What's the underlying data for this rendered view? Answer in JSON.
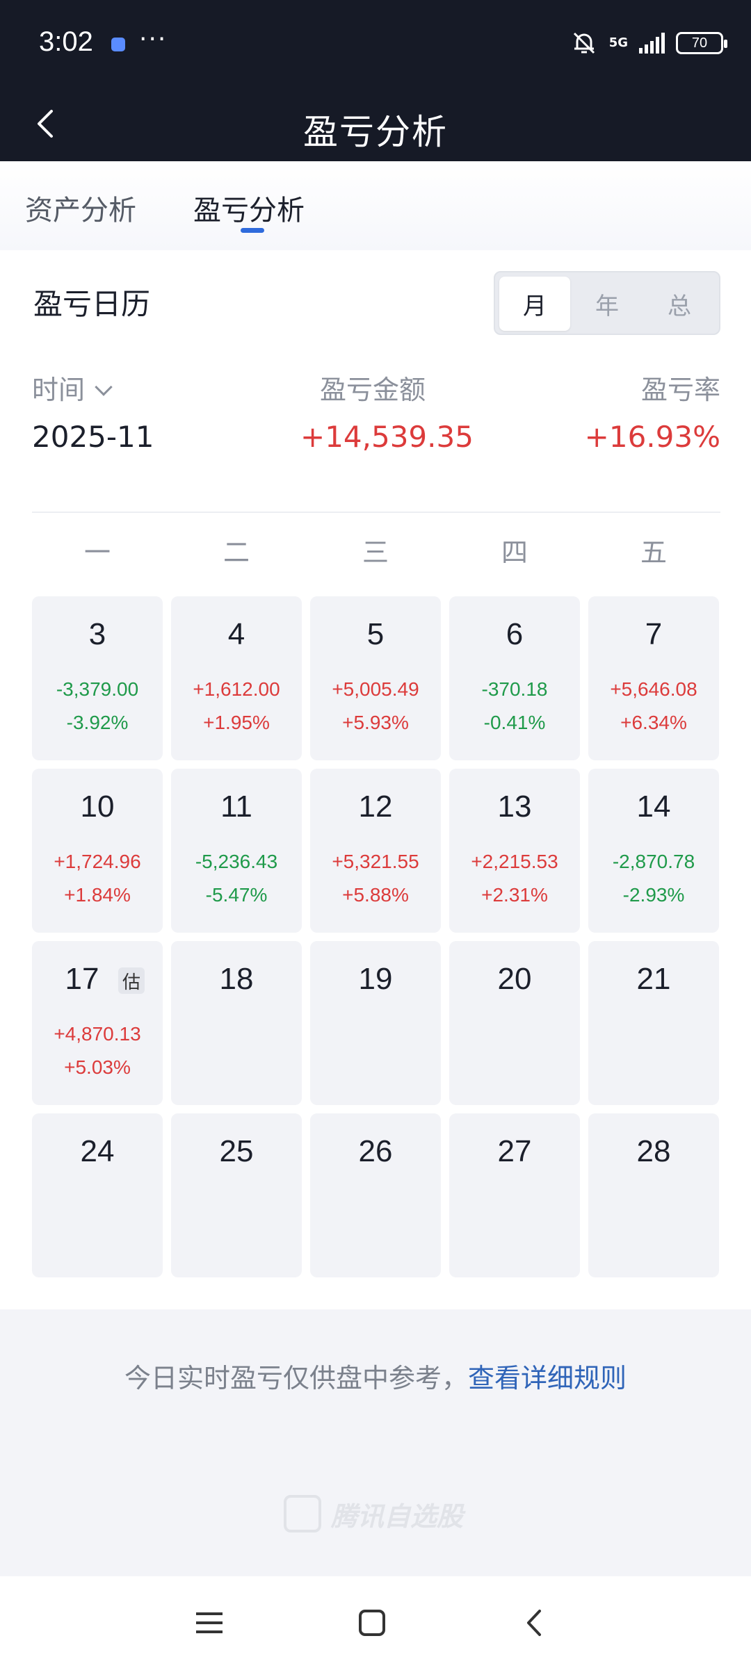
{
  "status_bar": {
    "time": "3:02",
    "more": "···",
    "network": "5G",
    "battery": "70",
    "icons": [
      "app-notification-icon",
      "bell-muted-icon",
      "signal-icon",
      "battery-icon"
    ]
  },
  "nav": {
    "title": "盈亏分析",
    "back_icon": "chevron-left-icon"
  },
  "tabs": [
    {
      "label": "资产分析",
      "active": false
    },
    {
      "label": "盈亏分析",
      "active": true
    }
  ],
  "calendar_section": {
    "title": "盈亏日历",
    "period_options": [
      {
        "label": "月",
        "selected": true
      },
      {
        "label": "年",
        "selected": false
      },
      {
        "label": "总",
        "selected": false
      }
    ]
  },
  "summary": {
    "time_label": "时间",
    "amount_label": "盈亏金额",
    "rate_label": "盈亏率",
    "period": "2025-11",
    "amount": "+14,539.35",
    "rate": "+16.93%"
  },
  "weekdays": [
    "一",
    "二",
    "三",
    "四",
    "五"
  ],
  "days": [
    {
      "day": "3",
      "amount": "-3,379.00",
      "pct": "-3.92%",
      "sign": "neg"
    },
    {
      "day": "4",
      "amount": "+1,612.00",
      "pct": "+1.95%",
      "sign": "pos"
    },
    {
      "day": "5",
      "amount": "+5,005.49",
      "pct": "+5.93%",
      "sign": "pos"
    },
    {
      "day": "6",
      "amount": "-370.18",
      "pct": "-0.41%",
      "sign": "neg"
    },
    {
      "day": "7",
      "amount": "+5,646.08",
      "pct": "+6.34%",
      "sign": "pos"
    },
    {
      "day": "10",
      "amount": "+1,724.96",
      "pct": "+1.84%",
      "sign": "pos"
    },
    {
      "day": "11",
      "amount": "-5,236.43",
      "pct": "-5.47%",
      "sign": "neg"
    },
    {
      "day": "12",
      "amount": "+5,321.55",
      "pct": "+5.88%",
      "sign": "pos"
    },
    {
      "day": "13",
      "amount": "+2,215.53",
      "pct": "+2.31%",
      "sign": "pos"
    },
    {
      "day": "14",
      "amount": "-2,870.78",
      "pct": "-2.93%",
      "sign": "neg"
    },
    {
      "day": "17",
      "amount": "+4,870.13",
      "pct": "+5.03%",
      "sign": "pos",
      "badge": "估"
    },
    {
      "day": "18"
    },
    {
      "day": "19"
    },
    {
      "day": "20"
    },
    {
      "day": "21"
    },
    {
      "day": "24"
    },
    {
      "day": "25"
    },
    {
      "day": "26"
    },
    {
      "day": "27"
    },
    {
      "day": "28"
    }
  ],
  "footer": {
    "note": "今日实时盈亏仅供盘中参考，",
    "link": "查看详细规则",
    "watermark": "腾讯自选股"
  },
  "colors": {
    "positive": "#dc3b3b",
    "negative": "#1f9a4a",
    "header_bg": "#161a26",
    "link": "#2f64b8",
    "tab_indicator": "#2f6bdc"
  },
  "system_nav": {
    "buttons": [
      "menu-icon",
      "home-icon",
      "back-icon"
    ]
  }
}
